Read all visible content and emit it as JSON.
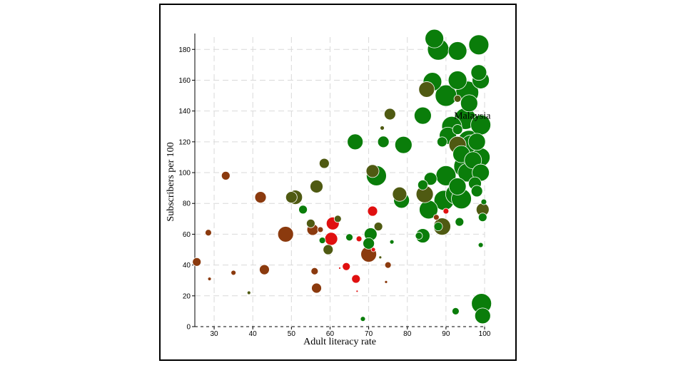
{
  "chart_data": {
    "type": "scatter",
    "title": "",
    "xlabel": "Adult literacy rate",
    "ylabel": "Subscribers per 100",
    "xlim": [
      25,
      100
    ],
    "ylim": [
      0,
      188
    ],
    "x_ticks": [
      30,
      40,
      50,
      60,
      70,
      80,
      90,
      100
    ],
    "y_ticks": [
      0,
      20,
      40,
      60,
      80,
      100,
      120,
      140,
      160,
      180
    ],
    "grid": true,
    "highlight": {
      "label": "Malaysia",
      "x": 93,
      "y": 148
    },
    "colors": {
      "green": "#0a7d0a",
      "olive": "#4f5a12",
      "brown": "#8b3a0e",
      "red": "#e01010"
    },
    "points": [
      {
        "x": 25.5,
        "y": 42,
        "size": 6,
        "color": "brown"
      },
      {
        "x": 28.5,
        "y": 61,
        "size": 4.5,
        "color": "brown"
      },
      {
        "x": 28.8,
        "y": 31,
        "size": 2.5,
        "color": "brown"
      },
      {
        "x": 33,
        "y": 98,
        "size": 6,
        "color": "brown"
      },
      {
        "x": 35,
        "y": 35,
        "size": 3.5,
        "color": "brown"
      },
      {
        "x": 39,
        "y": 22,
        "size": 2.5,
        "color": "olive"
      },
      {
        "x": 42,
        "y": 84,
        "size": 8,
        "color": "brown"
      },
      {
        "x": 43,
        "y": 37,
        "size": 7,
        "color": "brown"
      },
      {
        "x": 48.5,
        "y": 60,
        "size": 11,
        "color": "brown"
      },
      {
        "x": 50,
        "y": 84,
        "size": 8,
        "color": "olive"
      },
      {
        "x": 51,
        "y": 84,
        "size": 10,
        "color": "olive"
      },
      {
        "x": 53,
        "y": 76,
        "size": 6,
        "color": "green"
      },
      {
        "x": 55,
        "y": 67,
        "size": 6,
        "color": "olive"
      },
      {
        "x": 55.5,
        "y": 63,
        "size": 8,
        "color": "brown"
      },
      {
        "x": 56,
        "y": 36,
        "size": 5,
        "color": "brown"
      },
      {
        "x": 56.5,
        "y": 25,
        "size": 7,
        "color": "brown"
      },
      {
        "x": 56.5,
        "y": 91,
        "size": 9,
        "color": "olive"
      },
      {
        "x": 57.5,
        "y": 63,
        "size": 4,
        "color": "brown"
      },
      {
        "x": 58,
        "y": 56,
        "size": 4.5,
        "color": "green"
      },
      {
        "x": 58.5,
        "y": 106,
        "size": 7,
        "color": "olive"
      },
      {
        "x": 59.5,
        "y": 50,
        "size": 7,
        "color": "olive"
      },
      {
        "x": 60.3,
        "y": 57,
        "size": 9,
        "color": "red"
      },
      {
        "x": 60.7,
        "y": 67,
        "size": 9,
        "color": "red"
      },
      {
        "x": 62,
        "y": 70,
        "size": 5,
        "color": "olive"
      },
      {
        "x": 62.5,
        "y": 38,
        "size": 1.5,
        "color": "red"
      },
      {
        "x": 64.2,
        "y": 39,
        "size": 5.5,
        "color": "red"
      },
      {
        "x": 65,
        "y": 58,
        "size": 5,
        "color": "green"
      },
      {
        "x": 66.7,
        "y": 31,
        "size": 6,
        "color": "red"
      },
      {
        "x": 66.5,
        "y": 120,
        "size": 11,
        "color": "green"
      },
      {
        "x": 67,
        "y": 23,
        "size": 1.5,
        "color": "red"
      },
      {
        "x": 67.5,
        "y": 57,
        "size": 4,
        "color": "red"
      },
      {
        "x": 68.5,
        "y": 5,
        "size": 3.5,
        "color": "green"
      },
      {
        "x": 70,
        "y": 54,
        "size": 8,
        "color": "green"
      },
      {
        "x": 70,
        "y": 47,
        "size": 11,
        "color": "brown"
      },
      {
        "x": 70.5,
        "y": 60,
        "size": 9,
        "color": "green"
      },
      {
        "x": 71,
        "y": 75,
        "size": 7,
        "color": "red"
      },
      {
        "x": 71,
        "y": 101,
        "size": 9,
        "color": "olive"
      },
      {
        "x": 71.2,
        "y": 50,
        "size": 3,
        "color": "red"
      },
      {
        "x": 72,
        "y": 98,
        "size": 14,
        "color": "green"
      },
      {
        "x": 72.5,
        "y": 65,
        "size": 6,
        "color": "olive"
      },
      {
        "x": 73,
        "y": 45,
        "size": 2,
        "color": "olive"
      },
      {
        "x": 73.5,
        "y": 129,
        "size": 3,
        "color": "olive"
      },
      {
        "x": 73.8,
        "y": 120,
        "size": 8,
        "color": "green"
      },
      {
        "x": 74.5,
        "y": 29,
        "size": 2,
        "color": "brown"
      },
      {
        "x": 75,
        "y": 40,
        "size": 4.5,
        "color": "brown"
      },
      {
        "x": 75.5,
        "y": 138,
        "size": 8,
        "color": "olive"
      },
      {
        "x": 76,
        "y": 55,
        "size": 3,
        "color": "green"
      },
      {
        "x": 78,
        "y": 86,
        "size": 10,
        "color": "olive"
      },
      {
        "x": 78.5,
        "y": 82,
        "size": 11,
        "color": "green"
      },
      {
        "x": 79,
        "y": 118,
        "size": 12,
        "color": "green"
      },
      {
        "x": 83,
        "y": 59,
        "size": 5,
        "color": "green"
      },
      {
        "x": 84,
        "y": 59,
        "size": 10,
        "color": "green"
      },
      {
        "x": 84,
        "y": 92,
        "size": 7,
        "color": "green"
      },
      {
        "x": 84,
        "y": 137,
        "size": 12,
        "color": "green"
      },
      {
        "x": 84.5,
        "y": 86,
        "size": 12,
        "color": "olive"
      },
      {
        "x": 85,
        "y": 154,
        "size": 11,
        "color": "olive"
      },
      {
        "x": 85.5,
        "y": 76,
        "size": 13,
        "color": "green"
      },
      {
        "x": 86,
        "y": 96,
        "size": 9,
        "color": "green"
      },
      {
        "x": 86.5,
        "y": 159,
        "size": 13,
        "color": "green"
      },
      {
        "x": 87,
        "y": 187,
        "size": 13,
        "color": "green"
      },
      {
        "x": 87.5,
        "y": 71,
        "size": 4,
        "color": "brown"
      },
      {
        "x": 88,
        "y": 65,
        "size": 6,
        "color": "green"
      },
      {
        "x": 88,
        "y": 180,
        "size": 15,
        "color": "green"
      },
      {
        "x": 89,
        "y": 120,
        "size": 7,
        "color": "green"
      },
      {
        "x": 89,
        "y": 65,
        "size": 12,
        "color": "olive"
      },
      {
        "x": 89.5,
        "y": 82,
        "size": 14,
        "color": "green"
      },
      {
        "x": 90,
        "y": 98,
        "size": 14,
        "color": "green"
      },
      {
        "x": 90,
        "y": 150,
        "size": 15,
        "color": "green"
      },
      {
        "x": 90,
        "y": 75,
        "size": 4,
        "color": "red"
      },
      {
        "x": 90.5,
        "y": 124,
        "size": 12,
        "color": "green"
      },
      {
        "x": 91.5,
        "y": 130,
        "size": 14,
        "color": "green"
      },
      {
        "x": 92.5,
        "y": 86,
        "size": 14,
        "color": "green"
      },
      {
        "x": 92.5,
        "y": 10,
        "size": 5,
        "color": "green"
      },
      {
        "x": 93,
        "y": 91,
        "size": 12,
        "color": "green"
      },
      {
        "x": 93,
        "y": 118,
        "size": 12,
        "color": "olive"
      },
      {
        "x": 93,
        "y": 128,
        "size": 7,
        "color": "green"
      },
      {
        "x": 93,
        "y": 160,
        "size": 13,
        "color": "green"
      },
      {
        "x": 93,
        "y": 148,
        "size": 5,
        "color": "olive"
      },
      {
        "x": 93,
        "y": 179,
        "size": 13,
        "color": "green"
      },
      {
        "x": 93.5,
        "y": 68,
        "size": 6,
        "color": "green"
      },
      {
        "x": 94,
        "y": 112,
        "size": 12,
        "color": "green"
      },
      {
        "x": 94,
        "y": 83,
        "size": 14,
        "color": "green"
      },
      {
        "x": 95,
        "y": 135,
        "size": 15,
        "color": "green"
      },
      {
        "x": 95,
        "y": 104,
        "size": 16,
        "color": "green"
      },
      {
        "x": 95.5,
        "y": 100,
        "size": 13,
        "color": "green"
      },
      {
        "x": 95.5,
        "y": 152,
        "size": 16,
        "color": "green"
      },
      {
        "x": 96,
        "y": 120,
        "size": 16,
        "color": "green"
      },
      {
        "x": 96,
        "y": 145,
        "size": 12,
        "color": "green"
      },
      {
        "x": 96.5,
        "y": 118,
        "size": 14,
        "color": "green"
      },
      {
        "x": 97,
        "y": 108,
        "size": 12,
        "color": "green"
      },
      {
        "x": 97.5,
        "y": 93,
        "size": 9,
        "color": "green"
      },
      {
        "x": 98,
        "y": 88,
        "size": 8,
        "color": "green"
      },
      {
        "x": 98,
        "y": 120,
        "size": 12,
        "color": "green"
      },
      {
        "x": 98.5,
        "y": 165,
        "size": 11,
        "color": "green"
      },
      {
        "x": 98.5,
        "y": 183,
        "size": 14,
        "color": "green"
      },
      {
        "x": 99,
        "y": 110,
        "size": 13,
        "color": "green"
      },
      {
        "x": 99,
        "y": 131,
        "size": 14,
        "color": "green"
      },
      {
        "x": 99,
        "y": 160,
        "size": 12,
        "color": "green"
      },
      {
        "x": 99,
        "y": 100,
        "size": 12,
        "color": "green"
      },
      {
        "x": 99,
        "y": 53,
        "size": 3.5,
        "color": "green"
      },
      {
        "x": 99.2,
        "y": 15,
        "size": 14,
        "color": "green"
      },
      {
        "x": 99.5,
        "y": 76,
        "size": 9,
        "color": "olive"
      },
      {
        "x": 99.5,
        "y": 71,
        "size": 6,
        "color": "green"
      },
      {
        "x": 99.5,
        "y": 7,
        "size": 11,
        "color": "green"
      },
      {
        "x": 99.8,
        "y": 81,
        "size": 4,
        "color": "green"
      }
    ]
  }
}
